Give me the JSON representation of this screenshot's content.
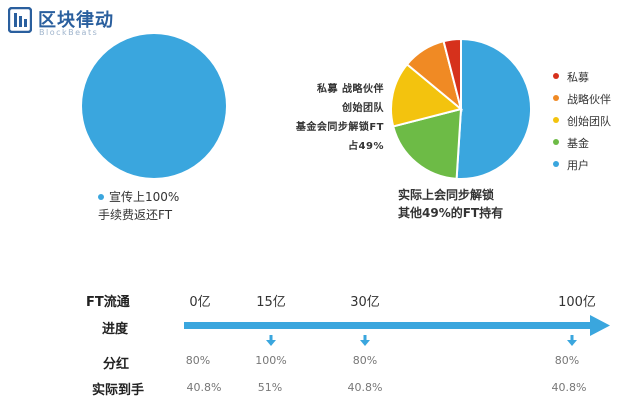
{
  "brand": {
    "name": "区块律动",
    "sub": "BlockBeats"
  },
  "colors": {
    "blue": "#3aa6de",
    "green": "#6dbb46",
    "yellow": "#f3c30e",
    "orange": "#f08a24",
    "red": "#d6311c",
    "logo": "#2a5f9e"
  },
  "chart_data": [
    {
      "type": "pie",
      "slices": [
        {
          "label": "宣传上100%",
          "value": 100,
          "color": "#3aa6de"
        }
      ],
      "caption": [
        "宣传上100%",
        "手续费返还FT"
      ]
    },
    {
      "type": "pie",
      "slices": [
        {
          "label": "用户",
          "value": 51,
          "color": "#3aa6de"
        },
        {
          "label": "基金",
          "value": 20,
          "color": "#6dbb46"
        },
        {
          "label": "创始团队",
          "value": 15,
          "color": "#f3c30e"
        },
        {
          "label": "战略伙伴",
          "value": 10,
          "color": "#f08a24"
        },
        {
          "label": "私募",
          "value": 4,
          "color": "#d6311c"
        }
      ],
      "legend": [
        "私募",
        "战略伙伴",
        "创始团队",
        "基金",
        "用户"
      ],
      "annotation": [
        "私募  战略伙伴",
        "创始团队",
        "基金会同步解锁FT",
        "占49%"
      ],
      "caption": [
        "实际上会同步解锁",
        "其他49%的FT持有"
      ]
    },
    {
      "type": "table",
      "row_labels": [
        "FT流通",
        "进度",
        "分红",
        "实际到手"
      ],
      "milestones": [
        {
          "label": "0亿",
          "value": 0,
          "dividend": "80%",
          "received": "40.8%",
          "marker": false
        },
        {
          "label": "15亿",
          "value": 15,
          "dividend": "100%",
          "received": "51%",
          "marker": true
        },
        {
          "label": "30亿",
          "value": 30,
          "dividend": "80%",
          "received": "40.8%",
          "marker": true
        },
        {
          "label": "100亿",
          "value": 100,
          "dividend": "80%",
          "received": "40.8%",
          "marker": true
        }
      ]
    }
  ]
}
